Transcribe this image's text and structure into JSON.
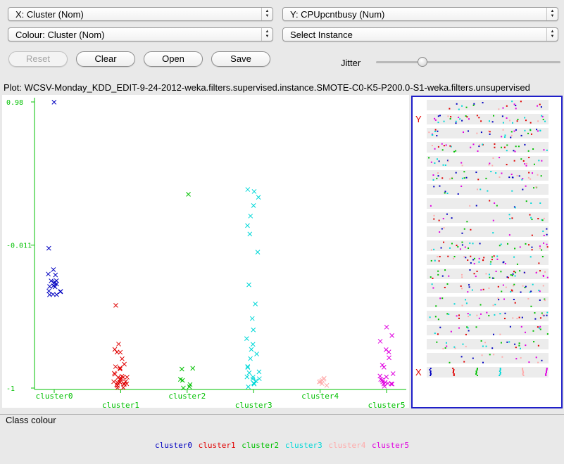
{
  "controls": {
    "x_axis_select": "X: Cluster (Nom)",
    "y_axis_select": "Y: CPUpcntbusy (Num)",
    "colour_select": "Colour: Cluster (Nom)",
    "instance_select": "Select Instance",
    "buttons": {
      "reset": "Reset",
      "clear": "Clear",
      "open": "Open",
      "save": "Save"
    },
    "jitter_label": "Jitter",
    "jitter_value": 0.25
  },
  "plot_title": "Plot: WCSV-Monday_KDD_EDIT-9-24-2012-weka.filters.supervised.instance.SMOTE-C0-K5-P200.0-S1-weka.filters.unsupervised",
  "chart_data": {
    "type": "scatter",
    "xlabel": "Cluster",
    "ylabel": "CPUpcntbusy",
    "categories": [
      "cluster0",
      "cluster1",
      "cluster2",
      "cluster3",
      "cluster4",
      "cluster5"
    ],
    "y_ticks": [
      "0.98",
      "-0.011",
      "-1"
    ],
    "ylim": [
      -1,
      0.98
    ],
    "marker": "x",
    "series": [
      {
        "name": "cluster0",
        "color": "#0000c0",
        "points": [
          [
            0,
            0.98
          ],
          [
            0,
            -0.04
          ],
          [
            0,
            -0.18
          ],
          [
            0,
            -0.2
          ],
          [
            0,
            -0.22
          ],
          [
            0,
            -0.25
          ],
          [
            0,
            -0.27
          ],
          [
            0,
            -0.28
          ],
          [
            0,
            -0.29
          ],
          [
            0,
            -0.3
          ],
          [
            0,
            -0.31
          ],
          [
            0,
            -0.32
          ],
          [
            0,
            -0.33
          ],
          [
            0,
            -0.34
          ],
          [
            0,
            -0.35
          ],
          [
            0,
            -0.36
          ],
          [
            0,
            -0.34
          ],
          [
            0,
            -0.3
          ],
          [
            0,
            -0.27
          ]
        ]
      },
      {
        "name": "cluster1",
        "color": "#e00000",
        "points": [
          [
            1,
            -0.42
          ],
          [
            1,
            -0.7
          ],
          [
            1,
            -0.72
          ],
          [
            1,
            -0.74
          ],
          [
            1,
            -0.76
          ],
          [
            1,
            -0.8
          ],
          [
            1,
            -0.83
          ],
          [
            1,
            -0.86
          ],
          [
            1,
            -0.88
          ],
          [
            1,
            -0.9
          ],
          [
            1,
            -0.92
          ],
          [
            1,
            -0.93
          ],
          [
            1,
            -0.94
          ],
          [
            1,
            -0.95
          ],
          [
            1,
            -0.96
          ],
          [
            1,
            -0.97
          ],
          [
            1,
            -0.98
          ],
          [
            1,
            -0.99
          ],
          [
            1,
            -0.94
          ],
          [
            1,
            -0.96
          ],
          [
            1,
            -0.97
          ],
          [
            1,
            -0.95
          ],
          [
            1,
            -0.93
          ],
          [
            1,
            -0.98
          ],
          [
            1,
            -0.99
          ],
          [
            1,
            -0.97
          ],
          [
            1,
            -0.96
          ],
          [
            1,
            -0.92
          ],
          [
            1,
            -0.89
          ],
          [
            1,
            -0.85
          ]
        ]
      },
      {
        "name": "cluster2",
        "color": "#00c000",
        "points": [
          [
            2,
            0.34
          ],
          [
            2,
            -0.86
          ],
          [
            2,
            -0.87
          ],
          [
            2,
            -0.95
          ],
          [
            2,
            -0.97
          ],
          [
            2,
            -0.98
          ],
          [
            2,
            -0.99
          ],
          [
            2,
            -0.96
          ]
        ]
      },
      {
        "name": "cluster3",
        "color": "#00d8d8",
        "points": [
          [
            3,
            0.36
          ],
          [
            3,
            0.37
          ],
          [
            3,
            0.31
          ],
          [
            3,
            0.25
          ],
          [
            3,
            0.19
          ],
          [
            3,
            0.12
          ],
          [
            3,
            0.06
          ],
          [
            3,
            -0.07
          ],
          [
            3,
            -0.3
          ],
          [
            3,
            -0.43
          ],
          [
            3,
            -0.53
          ],
          [
            3,
            -0.6
          ],
          [
            3,
            -0.65
          ],
          [
            3,
            -0.69
          ],
          [
            3,
            -0.72
          ],
          [
            3,
            -0.76
          ],
          [
            3,
            -0.8
          ],
          [
            3,
            -0.84
          ],
          [
            3,
            -0.87
          ],
          [
            3,
            -0.9
          ],
          [
            3,
            -0.92
          ],
          [
            3,
            -0.94
          ],
          [
            3,
            -0.96
          ],
          [
            3,
            -0.97
          ],
          [
            3,
            -0.98
          ],
          [
            3,
            -0.95
          ],
          [
            3,
            -0.93
          ],
          [
            3,
            -0.91
          ],
          [
            3,
            -0.89
          ],
          [
            3,
            -0.96
          ]
        ]
      },
      {
        "name": "cluster4",
        "color": "#ffaaaa",
        "points": [
          [
            4,
            -0.92
          ],
          [
            4,
            -0.94
          ],
          [
            4,
            -0.96
          ],
          [
            4,
            -0.97
          ],
          [
            4,
            -0.98
          ],
          [
            4,
            -0.95
          ],
          [
            4,
            -0.93
          ]
        ]
      },
      {
        "name": "cluster5",
        "color": "#e000e0",
        "points": [
          [
            5,
            -0.58
          ],
          [
            5,
            -0.63
          ],
          [
            5,
            -0.68
          ],
          [
            5,
            -0.72
          ],
          [
            5,
            -0.76
          ],
          [
            5,
            -0.8
          ],
          [
            5,
            -0.84
          ],
          [
            5,
            -0.87
          ],
          [
            5,
            -0.9
          ],
          [
            5,
            -0.92
          ],
          [
            5,
            -0.94
          ],
          [
            5,
            -0.95
          ],
          [
            5,
            -0.96
          ],
          [
            5,
            -0.97
          ],
          [
            5,
            -0.98
          ],
          [
            5,
            -0.99
          ],
          [
            5,
            -0.97
          ],
          [
            5,
            -0.95
          ],
          [
            5,
            -0.93
          ],
          [
            5,
            -0.96
          ]
        ]
      }
    ]
  },
  "matrix_panel": {
    "y_label": "Y",
    "x_label": "X",
    "colors": [
      "#0000c0",
      "#e00000",
      "#00c000",
      "#00d8d8",
      "#ffaaaa",
      "#e000e0"
    ]
  },
  "class_colour": {
    "title": "Class colour",
    "entries": [
      {
        "label": "cluster0",
        "color": "#0000c0"
      },
      {
        "label": "cluster1",
        "color": "#e00000"
      },
      {
        "label": "cluster2",
        "color": "#00c000"
      },
      {
        "label": "cluster3",
        "color": "#00d8d8"
      },
      {
        "label": "cluster4",
        "color": "#ffaaaa"
      },
      {
        "label": "cluster5",
        "color": "#e000e0"
      }
    ]
  }
}
